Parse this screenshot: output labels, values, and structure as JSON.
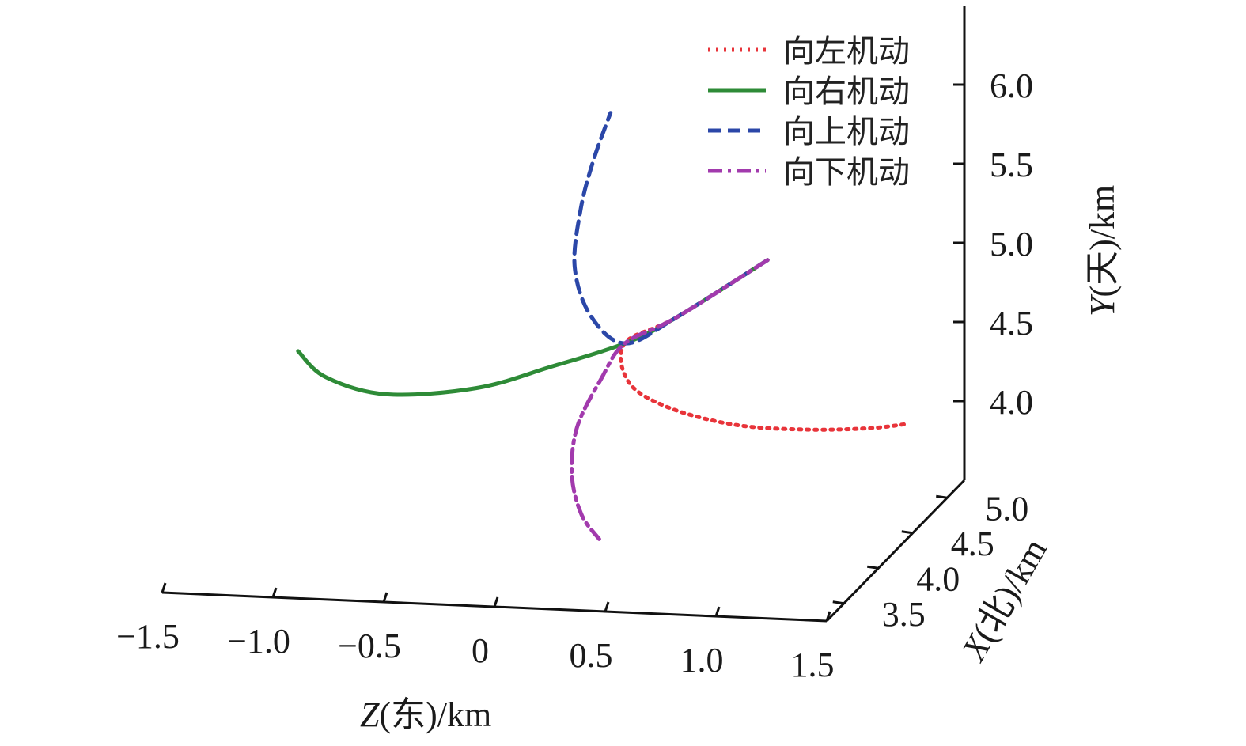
{
  "chart_data": {
    "type": "line",
    "projection": "3d",
    "axes": {
      "z": {
        "label_var": "Z",
        "label_rest": "(东)/km",
        "ticks": [
          "−1.5",
          "−1.0",
          "−0.5",
          "0",
          "0.5",
          "1.0",
          "1.5"
        ],
        "range": [
          -1.5,
          1.5
        ]
      },
      "x": {
        "label_var": "X",
        "label_rest": "(北)/km",
        "ticks": [
          "3.5",
          "4.0",
          "4.5",
          "5.0"
        ],
        "range": [
          3.25,
          5.25
        ]
      },
      "y": {
        "label_var": "Y",
        "label_rest": "(天)/km",
        "ticks": [
          "4.0",
          "4.5",
          "5.0",
          "5.5",
          "6.0"
        ],
        "range": [
          3.5,
          6.5
        ]
      }
    },
    "legend_position": "top-right",
    "series": [
      {
        "name": "向左机动",
        "color": "#e8343a",
        "style": "dotted",
        "points": [
          [
            0.72,
            4.9,
            5.0
          ],
          [
            0.4,
            4.6,
            4.75
          ],
          [
            0.2,
            4.5,
            4.62
          ],
          [
            0.25,
            4.4,
            4.42
          ],
          [
            0.45,
            4.34,
            4.3
          ],
          [
            0.75,
            4.32,
            4.22
          ],
          [
            1.05,
            4.38,
            4.18
          ],
          [
            1.3,
            4.5,
            4.15
          ],
          [
            1.42,
            4.64,
            4.12
          ]
        ]
      },
      {
        "name": "向右机动",
        "color": "#2e8b37",
        "style": "solid",
        "points": [
          [
            0.72,
            4.9,
            5.0
          ],
          [
            0.4,
            4.6,
            4.75
          ],
          [
            0.2,
            4.5,
            4.62
          ],
          [
            -0.1,
            4.4,
            4.5
          ],
          [
            -0.4,
            4.28,
            4.4
          ],
          [
            -0.8,
            4.25,
            4.35
          ],
          [
            -1.1,
            4.34,
            4.4
          ],
          [
            -1.25,
            4.42,
            4.52
          ]
        ]
      },
      {
        "name": "向上机动",
        "color": "#2b47a8",
        "style": "dashed",
        "points": [
          [
            0.72,
            4.9,
            5.0
          ],
          [
            0.4,
            4.6,
            4.75
          ],
          [
            0.2,
            4.5,
            4.62
          ],
          [
            0.05,
            4.48,
            4.8
          ],
          [
            -0.02,
            4.48,
            5.1
          ],
          [
            0.0,
            4.5,
            5.45
          ],
          [
            0.05,
            4.52,
            5.75
          ],
          [
            0.12,
            4.55,
            6.05
          ]
        ]
      },
      {
        "name": "向下机动",
        "color": "#a23aad",
        "style": "dashdot",
        "points": [
          [
            0.72,
            4.9,
            5.0
          ],
          [
            0.4,
            4.6,
            4.75
          ],
          [
            0.2,
            4.5,
            4.62
          ],
          [
            0.1,
            4.48,
            4.4
          ],
          [
            0.0,
            4.45,
            4.1
          ],
          [
            -0.02,
            4.44,
            3.8
          ],
          [
            0.02,
            4.45,
            3.55
          ],
          [
            0.1,
            4.45,
            3.4
          ]
        ]
      }
    ]
  }
}
